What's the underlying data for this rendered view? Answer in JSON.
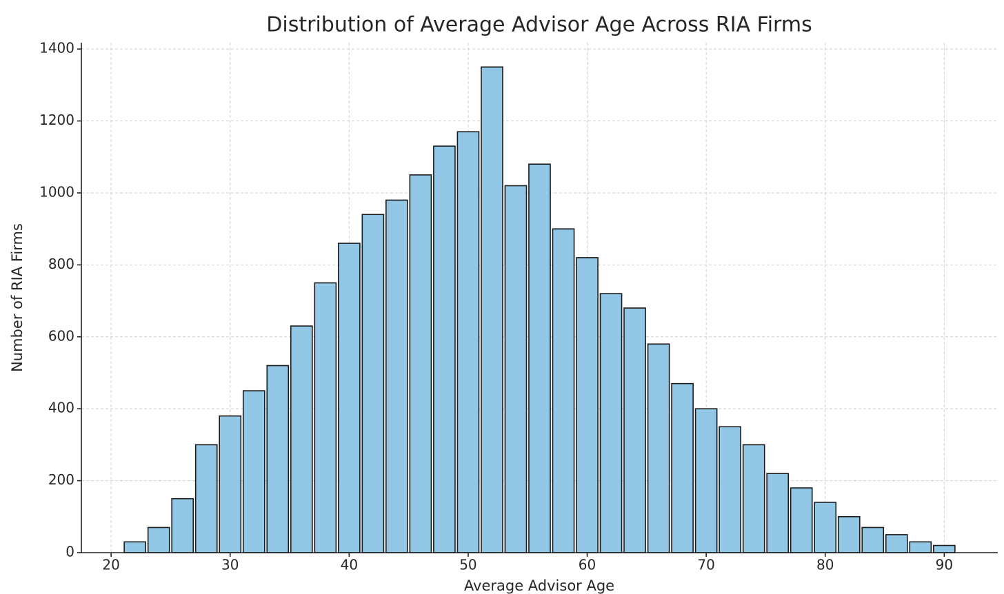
{
  "chart_data": {
    "type": "histogram",
    "title": "Distribution of Average Advisor Age Across RIA Firms",
    "x_label": "Average Advisor Age",
    "y_label": "Number of RIA Firms",
    "bins": [
      21,
      23,
      25,
      27,
      29,
      31,
      33,
      35,
      37,
      39,
      41,
      43,
      45,
      47,
      49,
      51,
      53,
      55,
      57,
      59,
      61,
      63,
      65,
      67,
      69,
      71,
      73,
      75,
      77,
      79,
      81,
      83,
      85,
      87,
      89,
      91
    ],
    "values": [
      30,
      70,
      150,
      300,
      380,
      450,
      520,
      630,
      750,
      860,
      940,
      980,
      1050,
      1130,
      1170,
      1350,
      1020,
      1080,
      900,
      820,
      720,
      680,
      580,
      470,
      400,
      350,
      300,
      220,
      180,
      140,
      100,
      70,
      50,
      30,
      20
    ],
    "color": "#93c7e6",
    "edgecolor": "#1a1a1a",
    "xlim": [
      17.5,
      94.5
    ],
    "xticks": [
      20,
      30,
      40,
      50,
      60,
      70,
      80,
      90
    ],
    "ylim": [
      0,
      1417.5
    ],
    "yticks": [
      0,
      200,
      400,
      600,
      800,
      1000,
      1200,
      1400
    ],
    "grid": true
  }
}
